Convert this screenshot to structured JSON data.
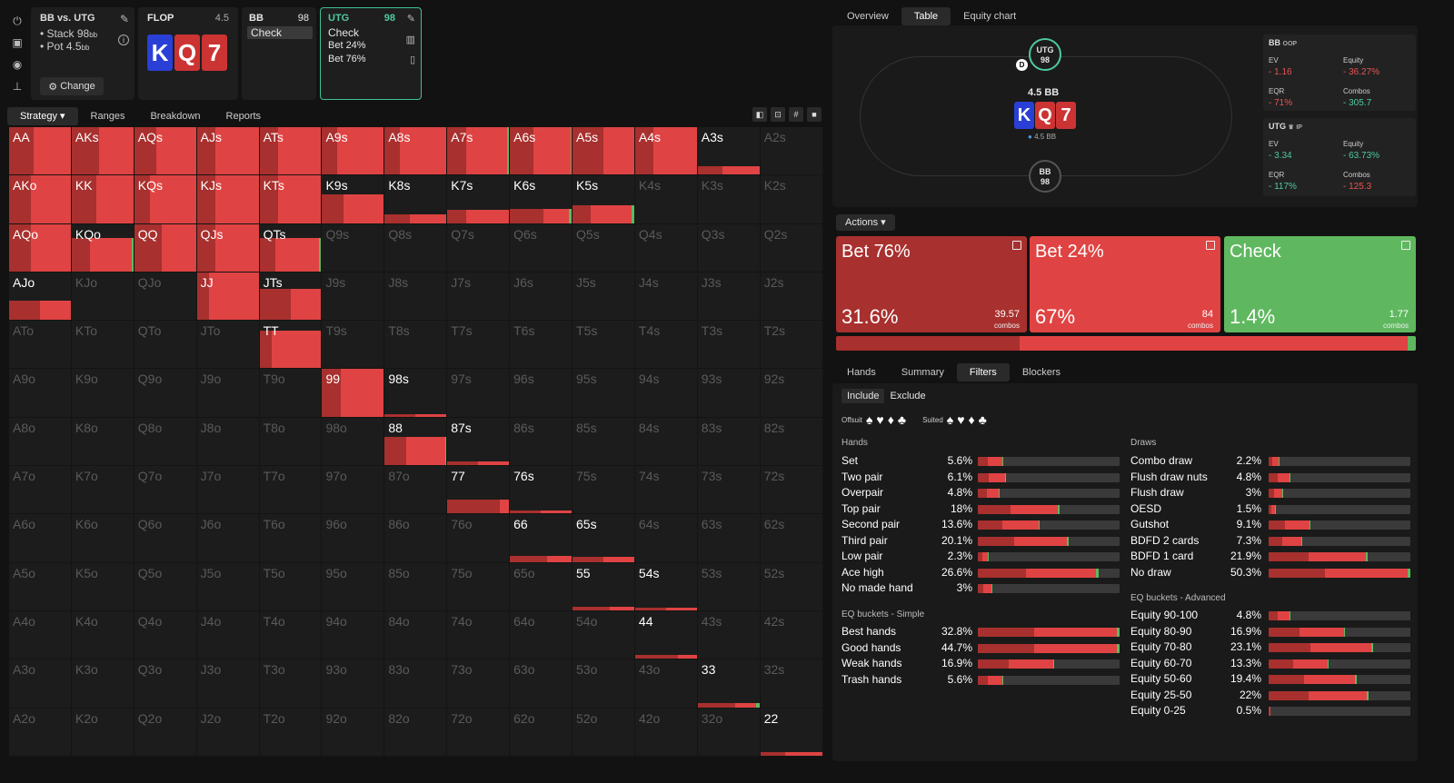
{
  "colors": {
    "bet76": "#a8302e",
    "bet24": "#e04343",
    "check": "#5fb85f",
    "teal": "#4fc9a0"
  },
  "game": {
    "title": "BB vs. UTG",
    "stack": "• Stack 98",
    "stack_unit": "bb",
    "pot": "• Pot 4.5",
    "pot_unit": "bb",
    "change_label": "Change"
  },
  "flop": {
    "label": "FLOP",
    "num": "4.5",
    "cards": [
      "K",
      "Q",
      "7"
    ]
  },
  "bb": {
    "label": "BB",
    "num": "98",
    "option": "Check"
  },
  "utg": {
    "label": "UTG",
    "num": "98",
    "options": [
      "Check",
      "Bet 24%",
      "Bet 76%"
    ]
  },
  "left_tabs": [
    "Strategy",
    "Ranges",
    "Breakdown",
    "Reports"
  ],
  "grid": [
    [
      "AA",
      "AKs",
      "AQs",
      "AJs",
      "ATs",
      "A9s",
      "A8s",
      "A7s",
      "A6s",
      "A5s",
      "A4s",
      "A3s",
      "A2s"
    ],
    [
      "AKo",
      "KK",
      "KQs",
      "KJs",
      "KTs",
      "K9s",
      "K8s",
      "K7s",
      "K6s",
      "K5s",
      "K4s",
      "K3s",
      "K2s"
    ],
    [
      "AQo",
      "KQo",
      "QQ",
      "QJs",
      "QTs",
      "Q9s",
      "Q8s",
      "Q7s",
      "Q6s",
      "Q5s",
      "Q4s",
      "Q3s",
      "Q2s"
    ],
    [
      "AJo",
      "KJo",
      "QJo",
      "JJ",
      "JTs",
      "J9s",
      "J8s",
      "J7s",
      "J6s",
      "J5s",
      "J4s",
      "J3s",
      "J2s"
    ],
    [
      "ATo",
      "KTo",
      "QTo",
      "JTo",
      "TT",
      "T9s",
      "T8s",
      "T7s",
      "T6s",
      "T5s",
      "T4s",
      "T3s",
      "T2s"
    ],
    [
      "A9o",
      "K9o",
      "Q9o",
      "J9o",
      "T9o",
      "99",
      "98s",
      "97s",
      "96s",
      "95s",
      "94s",
      "93s",
      "92s"
    ],
    [
      "A8o",
      "K8o",
      "Q8o",
      "J8o",
      "T8o",
      "98o",
      "88",
      "87s",
      "86s",
      "85s",
      "84s",
      "83s",
      "82s"
    ],
    [
      "A7o",
      "K7o",
      "Q7o",
      "J7o",
      "T7o",
      "97o",
      "87o",
      "77",
      "76s",
      "75s",
      "74s",
      "73s",
      "72s"
    ],
    [
      "A6o",
      "K6o",
      "Q6o",
      "J6o",
      "T6o",
      "96o",
      "86o",
      "76o",
      "66",
      "65s",
      "64s",
      "63s",
      "62s"
    ],
    [
      "A5o",
      "K5o",
      "Q5o",
      "J5o",
      "T5o",
      "95o",
      "85o",
      "75o",
      "65o",
      "55",
      "54s",
      "53s",
      "52s"
    ],
    [
      "A4o",
      "K4o",
      "Q4o",
      "J4o",
      "T4o",
      "94o",
      "84o",
      "74o",
      "64o",
      "54o",
      "44",
      "43s",
      "42s"
    ],
    [
      "A3o",
      "K3o",
      "Q3o",
      "J3o",
      "T3o",
      "93o",
      "83o",
      "73o",
      "63o",
      "53o",
      "43o",
      "33",
      "32s"
    ],
    [
      "A2o",
      "K2o",
      "Q2o",
      "J2o",
      "T2o",
      "92o",
      "82o",
      "72o",
      "62o",
      "52o",
      "42o",
      "32o",
      "22"
    ]
  ],
  "right_tabs": [
    "Overview",
    "Table",
    "Equity chart"
  ],
  "table": {
    "utg_seat": "UTG",
    "utg_stack": "98",
    "bb_seat": "BB",
    "bb_stack": "98",
    "dealer": "D",
    "pot": "4.5 BB",
    "pot_small": "4.5 BB",
    "cards": [
      "K",
      "Q",
      "7"
    ]
  },
  "bb_stats": {
    "title": "BB",
    "pos": "OOP",
    "ev_label": "EV",
    "ev": "- 1.16",
    "equity_label": "Equity",
    "equity": "- 36.27%",
    "eqr_label": "EQR",
    "eqr": "- 71%",
    "combos_label": "Combos",
    "combos": "- 305.7"
  },
  "utg_stats": {
    "title": "UTG",
    "pos": "IP",
    "ev_label": "EV",
    "ev": "- 3.34",
    "equity_label": "Equity",
    "equity": "- 63.73%",
    "eqr_label": "EQR",
    "eqr": "- 117%",
    "combos_label": "Combos",
    "combos": "- 125.3"
  },
  "actions_label": "Actions",
  "actions": [
    {
      "name": "Bet 76%",
      "pct": "31.6%",
      "combos": "39.57",
      "combos_label": "combos",
      "share": 31.6
    },
    {
      "name": "Bet 24%",
      "pct": "67%",
      "combos": "84",
      "combos_label": "combos",
      "share": 67
    },
    {
      "name": "Check",
      "pct": "1.4%",
      "combos": "1.77",
      "combos_label": "combos",
      "share": 1.4
    }
  ],
  "filter_tabs": [
    "Hands",
    "Summary",
    "Filters",
    "Blockers"
  ],
  "include": "Include",
  "exclude": "Exclude",
  "offsuit": "Offsuit",
  "suited": "Suited",
  "hands_title": "Hands",
  "hands": [
    {
      "n": "Set",
      "p": "5.6%",
      "v": 5.6
    },
    {
      "n": "Two pair",
      "p": "6.1%",
      "v": 6.1
    },
    {
      "n": "Overpair",
      "p": "4.8%",
      "v": 4.8
    },
    {
      "n": "Top pair",
      "p": "18%",
      "v": 18
    },
    {
      "n": "Second pair",
      "p": "13.6%",
      "v": 13.6
    },
    {
      "n": "Third pair",
      "p": "20.1%",
      "v": 20.1
    },
    {
      "n": "Low pair",
      "p": "2.3%",
      "v": 2.3
    },
    {
      "n": "Ace high",
      "p": "26.6%",
      "v": 26.6
    },
    {
      "n": "No made hand",
      "p": "3%",
      "v": 3
    }
  ],
  "draws_title": "Draws",
  "draws": [
    {
      "n": "Combo draw",
      "p": "2.2%",
      "v": 2.2
    },
    {
      "n": "Flush draw nuts",
      "p": "4.8%",
      "v": 4.8
    },
    {
      "n": "Flush draw",
      "p": "3%",
      "v": 3
    },
    {
      "n": "OESD",
      "p": "1.5%",
      "v": 1.5
    },
    {
      "n": "Gutshot",
      "p": "9.1%",
      "v": 9.1
    },
    {
      "n": "BDFD 2 cards",
      "p": "7.3%",
      "v": 7.3
    },
    {
      "n": "BDFD 1 card",
      "p": "21.9%",
      "v": 21.9
    },
    {
      "n": "No draw",
      "p": "50.3%",
      "v": 50.3
    }
  ],
  "eqs_title": "EQ buckets - Simple",
  "eqs": [
    {
      "n": "Best hands",
      "p": "32.8%",
      "v": 32.8
    },
    {
      "n": "Good hands",
      "p": "44.7%",
      "v": 44.7
    },
    {
      "n": "Weak hands",
      "p": "16.9%",
      "v": 16.9
    },
    {
      "n": "Trash hands",
      "p": "5.6%",
      "v": 5.6
    }
  ],
  "eqa_title": "EQ buckets - Advanced",
  "eqa": [
    {
      "n": "Equity 90-100",
      "p": "4.8%",
      "v": 4.8
    },
    {
      "n": "Equity 80-90",
      "p": "16.9%",
      "v": 16.9
    },
    {
      "n": "Equity 70-80",
      "p": "23.1%",
      "v": 23.1
    },
    {
      "n": "Equity 60-70",
      "p": "13.3%",
      "v": 13.3
    },
    {
      "n": "Equity 50-60",
      "p": "19.4%",
      "v": 19.4
    },
    {
      "n": "Equity 25-50",
      "p": "22%",
      "v": 22
    },
    {
      "n": "Equity 0-25",
      "p": "0.5%",
      "v": 0.5
    }
  ]
}
